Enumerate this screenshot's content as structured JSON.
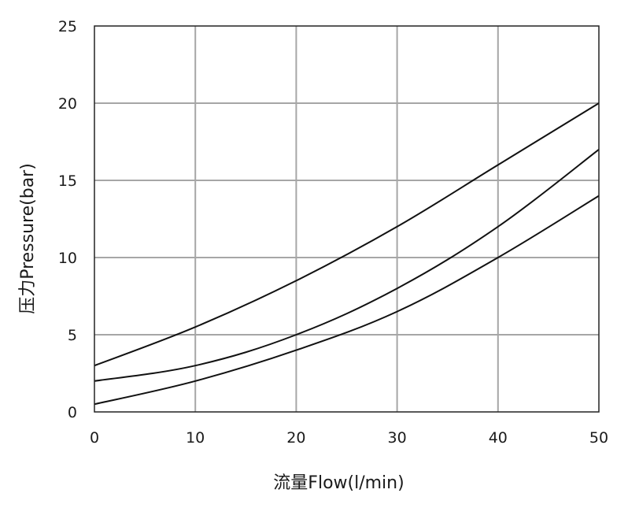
{
  "chart_data": {
    "type": "line",
    "title": "",
    "xlabel": "流量Flow(l/min)",
    "ylabel": "压力Pressure(bar)",
    "xlim": [
      0,
      50
    ],
    "ylim": [
      0,
      25
    ],
    "x_ticks": [
      0,
      10,
      20,
      30,
      40,
      50
    ],
    "y_ticks": [
      0,
      5,
      10,
      15,
      20,
      25
    ],
    "grid": true,
    "legend": "none",
    "colors": {
      "series": "#111111",
      "grid": "#a6a6a6"
    },
    "series": [
      {
        "x": [
          0,
          10,
          20,
          30,
          40,
          50
        ],
        "values": [
          3.0,
          5.5,
          8.5,
          12.0,
          16.0,
          20.0
        ]
      },
      {
        "x": [
          0,
          10,
          20,
          30,
          40,
          50
        ],
        "values": [
          2.0,
          3.0,
          5.0,
          8.0,
          12.0,
          17.0
        ]
      },
      {
        "x": [
          0,
          10,
          20,
          30,
          40,
          50
        ],
        "values": [
          0.5,
          2.0,
          4.0,
          6.5,
          10.0,
          14.0
        ]
      }
    ]
  }
}
